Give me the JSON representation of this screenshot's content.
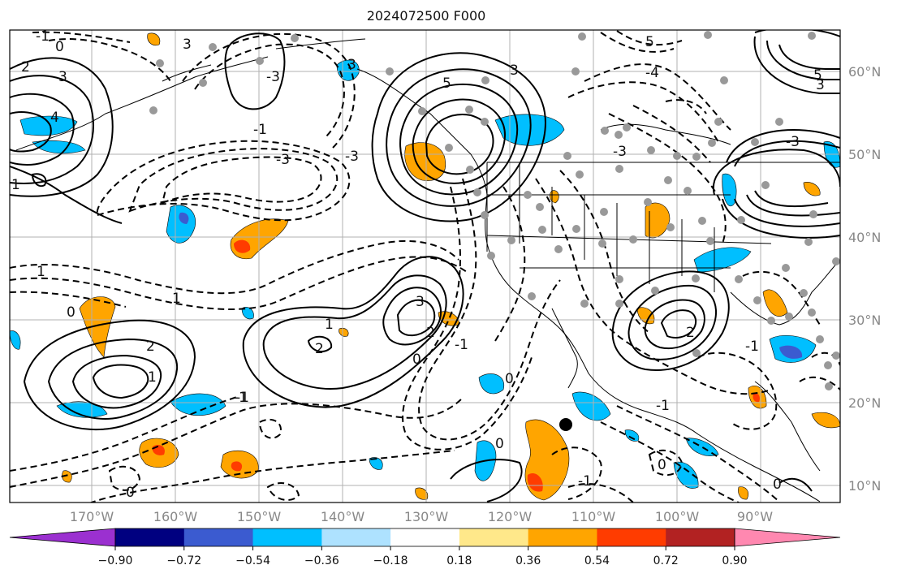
{
  "title": "2024072500 F000",
  "lat_labels": [
    "60°N",
    "50°N",
    "40°N",
    "30°N",
    "20°N",
    "10°N"
  ],
  "lon_labels": [
    "170°W",
    "160°W",
    "150°W",
    "140°W",
    "130°W",
    "120°W",
    "110°W",
    "100°W",
    "90°W"
  ],
  "colorbar": {
    "ticks": [
      "−0.90",
      "−0.72",
      "−0.54",
      "−0.36",
      "−0.18",
      "0.18",
      "0.36",
      "0.54",
      "0.72",
      "0.90"
    ],
    "colors": [
      "#9b30d0",
      "#000080",
      "#3b5bd0",
      "#00bfff",
      "#aee2ff",
      "#ffffff",
      "#ffe88a",
      "#ffa500",
      "#ff3c00",
      "#b22222",
      "#ff88b0"
    ]
  },
  "contour_labels": [
    "2",
    "3",
    "4",
    "1",
    "0",
    "-1",
    "-3",
    "3",
    "5",
    "3",
    "-3",
    "5",
    "3",
    "-1",
    "-1",
    "-3",
    "1",
    "3",
    "2",
    "1",
    "2",
    "2",
    "-1",
    "-1",
    "0",
    "0",
    "0",
    "0",
    "-1",
    "2",
    "1",
    "-1",
    "0",
    "0",
    "1",
    "0",
    "-4",
    "-3",
    "-3",
    "-1",
    "3",
    "5"
  ],
  "marker": {
    "label": "black dot",
    "color": "#000000"
  }
}
